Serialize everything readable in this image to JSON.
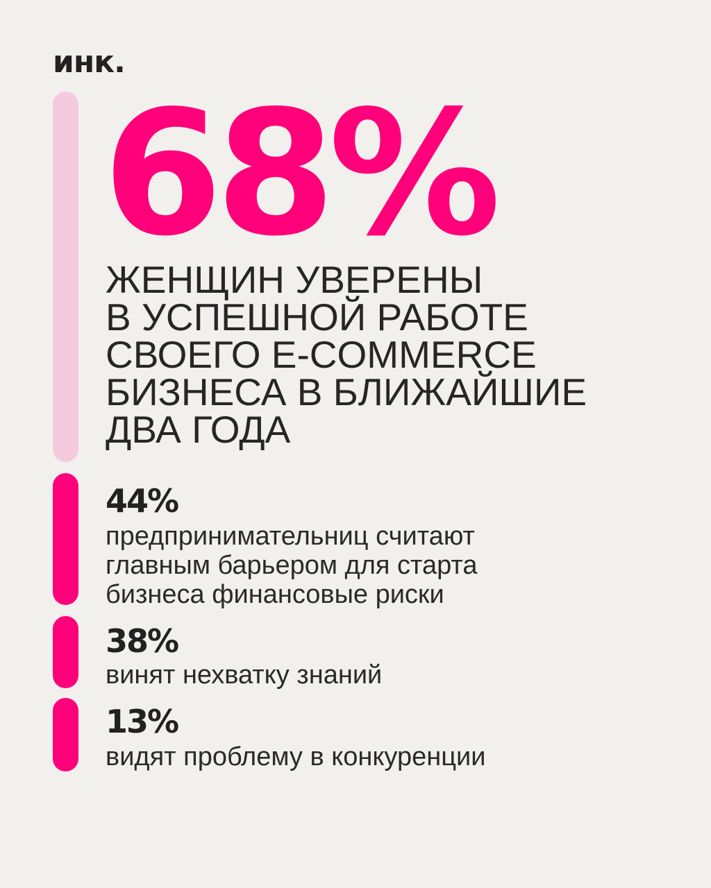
{
  "brand": {
    "logo_text": "инк."
  },
  "colors": {
    "background": "#f2f0ed",
    "accent": "#ff007a",
    "accent_light": "#f5c9de",
    "text": "#222222"
  },
  "hero": {
    "value": "68%",
    "caption_lines": [
      "ЖЕНЩИН УВЕРЕНЫ",
      "В УСПЕШНОЙ РАБОТЕ",
      "СВОЕГО E-COMMERCE",
      "БИЗНЕСА В БЛИЖАЙШИЕ",
      "ДВА ГОДА"
    ]
  },
  "stats": [
    {
      "value": "44%",
      "text_lines": [
        "предпринимательниц считают",
        "главным барьером для старта",
        "бизнеса финансовые риски"
      ]
    },
    {
      "value": "38%",
      "text_lines": [
        "винят нехватку знаний"
      ]
    },
    {
      "value": "13%",
      "text_lines": [
        "видят проблему в конкуренции"
      ]
    }
  ]
}
